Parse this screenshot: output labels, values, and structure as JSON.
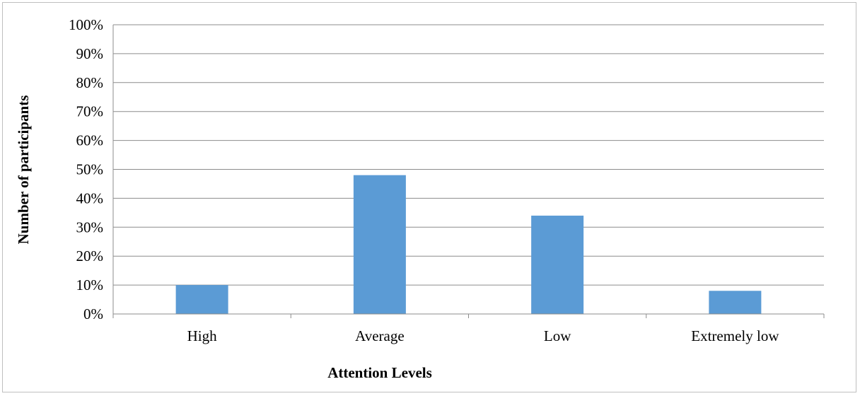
{
  "chart_data": {
    "type": "bar",
    "categories": [
      "High",
      "Average",
      "Low",
      "Extremely low"
    ],
    "values": [
      10,
      48,
      34,
      8
    ],
    "series": [
      {
        "values": [
          10,
          48,
          34,
          8
        ],
        "color": "#5b9bd5"
      }
    ],
    "xlabel": "Attention Levels",
    "ylabel": "Number of participants",
    "ylim": [
      0,
      100
    ],
    "yticks": [
      0,
      10,
      20,
      30,
      40,
      50,
      60,
      70,
      80,
      90,
      100
    ],
    "ytick_labels": [
      "0%",
      "10%",
      "20%",
      "30%",
      "40%",
      "50%",
      "60%",
      "70%",
      "80%",
      "90%",
      "100%"
    ],
    "grid": true,
    "legend": "none",
    "colors": {
      "bar": "#5b9bd5",
      "grid": "#8c8c8c",
      "axis": "#8c8c8c"
    }
  }
}
